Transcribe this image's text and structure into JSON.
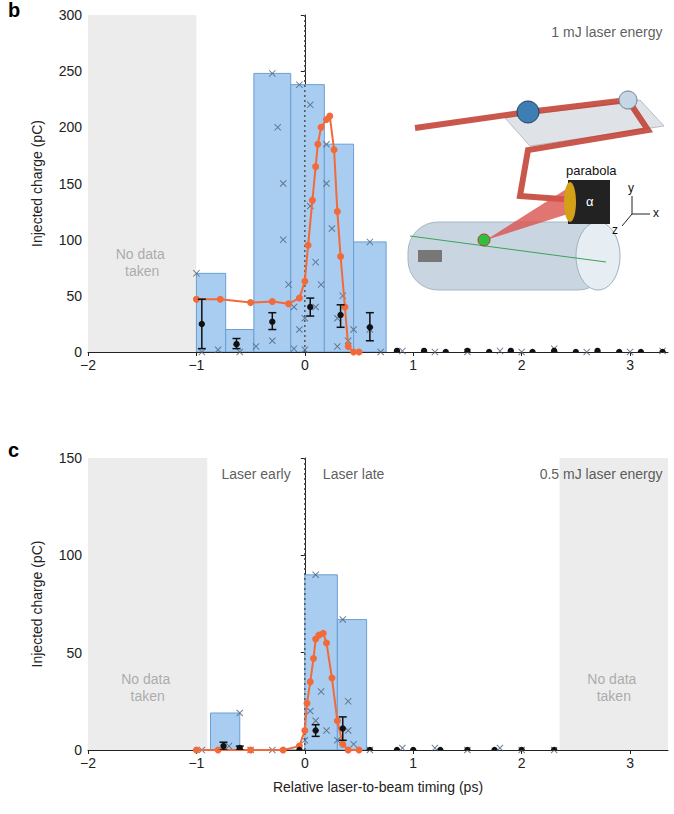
{
  "chart_data": [
    {
      "type": "histogram",
      "panel": "b",
      "y_label": "Injected charge (pC)",
      "xlim": [
        -2,
        3.35
      ],
      "xticks": [
        {
          "value": -2,
          "label": "−2"
        },
        {
          "value": -1,
          "label": "−1"
        },
        0,
        1,
        2,
        3
      ],
      "ylim": [
        0,
        300
      ],
      "yticks": [
        0,
        50,
        100,
        150,
        200,
        250,
        300
      ],
      "grid": false,
      "vline": 0,
      "shaded": [
        {
          "from": -2,
          "to": -1,
          "label": "No data taken",
          "label_x": -1.5,
          "label_y": 80
        }
      ],
      "annotations": [
        {
          "text": "1 mJ laser energy",
          "x": 3.3,
          "y": 285
        }
      ],
      "inset_labels": [
        "parabola",
        "α",
        "x",
        "y",
        "z"
      ],
      "series": [
        {
          "type": "bar",
          "color": "#a9cdf0",
          "bins": [
            -1,
            -0.73,
            -0.47,
            -0.13,
            0.18,
            0.45,
            0.75
          ],
          "values": [
            70,
            20,
            248,
            238,
            185,
            98
          ]
        },
        {
          "type": "scatter",
          "marker": "x",
          "color": "#4f6078",
          "x": [
            -1,
            -0.95,
            -0.8,
            -0.6,
            -0.45,
            -0.3,
            -0.3,
            -0.25,
            -0.2,
            -0.2,
            -0.15,
            -0.1,
            -0.1,
            -0.05,
            -0.05,
            0,
            0,
            0.05,
            0.05,
            0.1,
            0.1,
            0.15,
            0.2,
            0.2,
            0.25,
            0.3,
            0.3,
            0.35,
            0.4,
            0.45,
            0.6,
            0.6,
            0.7,
            0.9,
            1.2,
            1.5,
            1.8,
            2.0,
            2.3,
            2.6,
            3.0,
            3.3
          ],
          "values": [
            70,
            0,
            2,
            0,
            5,
            248,
            10,
            200,
            150,
            100,
            60,
            40,
            3,
            238,
            20,
            30,
            2,
            220,
            130,
            80,
            40,
            60,
            185,
            150,
            110,
            30,
            5,
            50,
            10,
            20,
            98,
            20,
            0,
            1,
            0,
            0,
            1,
            0,
            3,
            0,
            0,
            1
          ]
        },
        {
          "type": "line",
          "marker": "circle",
          "color": "#f26a3a",
          "x": [
            -1,
            -0.78,
            -0.5,
            -0.3,
            -0.15,
            -0.05,
            0,
            0.03,
            0.07,
            0.1,
            0.12,
            0.15,
            0.2,
            0.23,
            0.27,
            0.3,
            0.33,
            0.37,
            0.4,
            0.45,
            0.5
          ],
          "values": [
            47,
            47,
            44,
            45,
            43,
            48,
            63,
            95,
            135,
            165,
            185,
            200,
            207,
            210,
            180,
            125,
            85,
            40,
            5,
            0,
            0
          ]
        },
        {
          "type": "errorbar",
          "marker": "circle",
          "color": "#111111",
          "x": [
            -0.95,
            -0.63,
            -0.3,
            0.05,
            0.33,
            0.6,
            0.85,
            1.1,
            1.3,
            1.5,
            1.7,
            1.9,
            2.1,
            2.3,
            2.5,
            2.7,
            2.9,
            3.1,
            3.3
          ],
          "values": [
            25,
            7,
            27,
            40,
            33,
            22,
            1,
            1,
            0,
            1,
            0,
            1,
            0,
            1,
            0,
            1,
            0,
            0,
            0
          ],
          "error_low": [
            3,
            3,
            20,
            32,
            22,
            10,
            1,
            1,
            0,
            1,
            0,
            1,
            0,
            1,
            0,
            1,
            0,
            0,
            0
          ],
          "error_high": [
            47,
            12,
            35,
            48,
            42,
            35,
            1,
            1,
            0,
            1,
            0,
            1,
            0,
            1,
            0,
            1,
            0,
            0,
            0
          ]
        }
      ]
    },
    {
      "type": "histogram",
      "panel": "c",
      "x_label": "Relative laser-to-beam timing (ps)",
      "y_label": "Injected charge (pC)",
      "xlim": [
        -2,
        3.35
      ],
      "xticks": [
        {
          "value": -2,
          "label": "−2"
        },
        {
          "value": -1,
          "label": "−1"
        },
        0,
        1,
        2,
        3
      ],
      "ylim": [
        0,
        150
      ],
      "yticks": [
        0,
        50,
        100,
        150
      ],
      "grid": false,
      "vline": 0,
      "shaded": [
        {
          "from": -2,
          "to": -0.9,
          "label": "No data taken",
          "label_x": -1.45,
          "label_y": 32
        },
        {
          "from": 2.35,
          "to": 3.35,
          "label": "No data taken",
          "label_x": 2.85,
          "label_y": 32
        }
      ],
      "annotations": [
        {
          "text": "Laser early",
          "x": -0.45,
          "y": 142
        },
        {
          "text": "Laser late",
          "x": 0.45,
          "y": 142
        },
        {
          "text": "0.5 mJ laser energy",
          "x": 3.3,
          "y": 142
        }
      ],
      "series": [
        {
          "type": "bar",
          "color": "#a9cdf0",
          "bins": [
            -0.87,
            -0.6,
            0,
            0.3,
            0.57
          ],
          "values": [
            19,
            0,
            90,
            67
          ]
        },
        {
          "type": "scatter",
          "marker": "x",
          "color": "#4f6078",
          "x": [
            -0.95,
            -0.7,
            -0.6,
            -0.5,
            -0.3,
            0,
            0.05,
            0.1,
            0.1,
            0.15,
            0.2,
            0.3,
            0.35,
            0.4,
            0.4,
            0.45,
            0.6,
            0.9,
            1.2,
            1.5,
            1.8,
            2.0,
            2.3
          ],
          "values": [
            0,
            2,
            19,
            0,
            0,
            5,
            20,
            90,
            15,
            30,
            10,
            5,
            67,
            25,
            10,
            3,
            0,
            1,
            1,
            0,
            1,
            0,
            0
          ]
        },
        {
          "type": "line",
          "marker": "circle",
          "color": "#f26a3a",
          "x": [
            -1,
            -0.8,
            -0.5,
            -0.2,
            -0.05,
            0,
            0.02,
            0.05,
            0.08,
            0.1,
            0.13,
            0.17,
            0.2,
            0.25,
            0.3,
            0.35,
            0.4,
            0.5
          ],
          "values": [
            0,
            0,
            0,
            0,
            2,
            10,
            24,
            35,
            47,
            57,
            59,
            60,
            55,
            37,
            15,
            3,
            0,
            0
          ]
        },
        {
          "type": "errorbar",
          "marker": "circle",
          "color": "#111111",
          "x": [
            -0.75,
            -0.6,
            -0.05,
            0.1,
            0.35,
            0.6,
            0.85,
            1.0,
            1.25,
            1.5,
            1.75,
            2.0,
            2.3
          ],
          "values": [
            2,
            1,
            0,
            10,
            11,
            0,
            0,
            0,
            0,
            0,
            0,
            0,
            0
          ],
          "error_low": [
            0,
            0,
            0,
            7,
            5,
            0,
            0,
            0,
            0,
            0,
            0,
            0,
            0
          ],
          "error_high": [
            4,
            2,
            0,
            13,
            17,
            0,
            0,
            0,
            0,
            0,
            0,
            0,
            0
          ]
        }
      ]
    }
  ]
}
